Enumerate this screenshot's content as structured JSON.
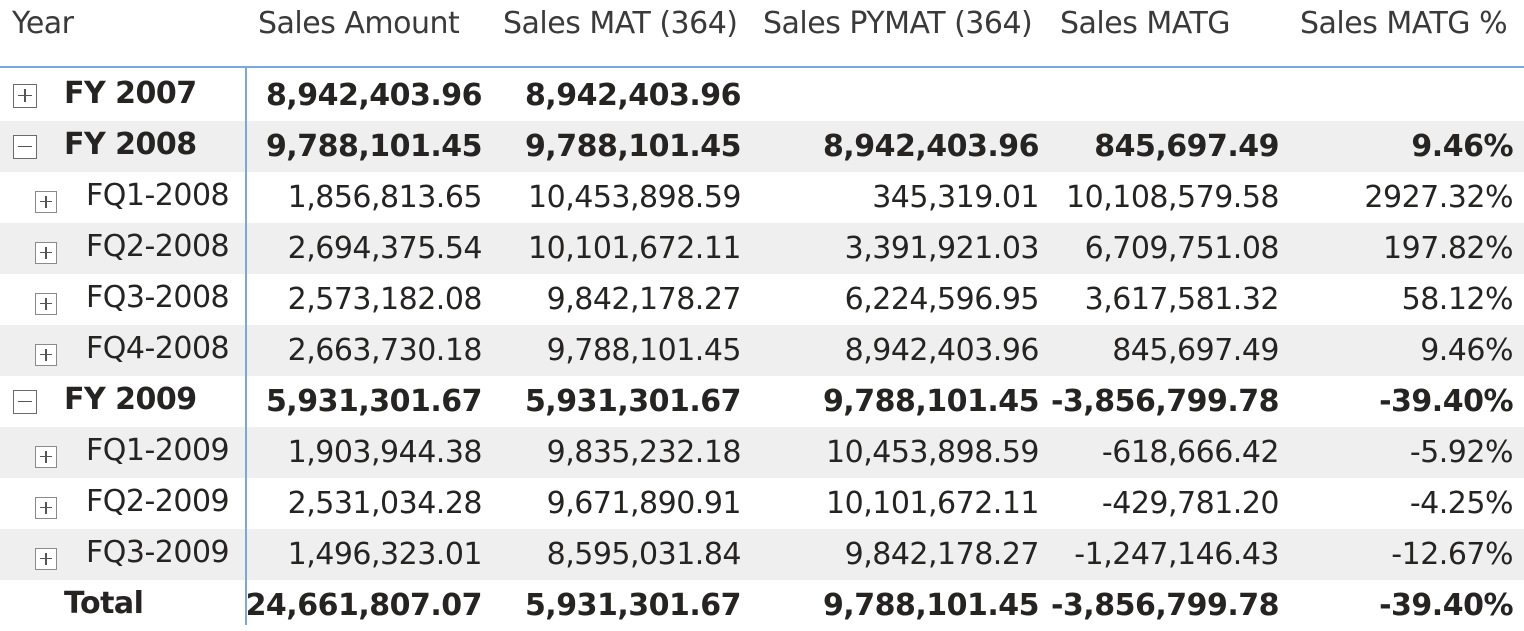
{
  "columns": [
    "Year",
    "Sales Amount",
    "Sales MAT (364)",
    "Sales PYMAT (364)",
    "Sales MATG",
    "Sales MATG %"
  ],
  "rows": [
    {
      "label": "FY 2007",
      "level": 0,
      "expand": "plus",
      "bold": true,
      "values": [
        "8,942,403.96",
        "8,942,403.96",
        "",
        "",
        ""
      ]
    },
    {
      "label": "FY 2008",
      "level": 0,
      "expand": "minus",
      "bold": true,
      "values": [
        "9,788,101.45",
        "9,788,101.45",
        "8,942,403.96",
        "845,697.49",
        "9.46%"
      ]
    },
    {
      "label": "FQ1-2008",
      "level": 1,
      "expand": "plus",
      "bold": false,
      "values": [
        "1,856,813.65",
        "10,453,898.59",
        "345,319.01",
        "10,108,579.58",
        "2927.32%"
      ]
    },
    {
      "label": "FQ2-2008",
      "level": 1,
      "expand": "plus",
      "bold": false,
      "values": [
        "2,694,375.54",
        "10,101,672.11",
        "3,391,921.03",
        "6,709,751.08",
        "197.82%"
      ]
    },
    {
      "label": "FQ3-2008",
      "level": 1,
      "expand": "plus",
      "bold": false,
      "values": [
        "2,573,182.08",
        "9,842,178.27",
        "6,224,596.95",
        "3,617,581.32",
        "58.12%"
      ]
    },
    {
      "label": "FQ4-2008",
      "level": 1,
      "expand": "plus",
      "bold": false,
      "values": [
        "2,663,730.18",
        "9,788,101.45",
        "8,942,403.96",
        "845,697.49",
        "9.46%"
      ]
    },
    {
      "label": "FY 2009",
      "level": 0,
      "expand": "minus",
      "bold": true,
      "values": [
        "5,931,301.67",
        "5,931,301.67",
        "9,788,101.45",
        "-3,856,799.78",
        "-39.40%"
      ]
    },
    {
      "label": "FQ1-2009",
      "level": 1,
      "expand": "plus",
      "bold": false,
      "values": [
        "1,903,944.38",
        "9,835,232.18",
        "10,453,898.59",
        "-618,666.42",
        "-5.92%"
      ]
    },
    {
      "label": "FQ2-2009",
      "level": 1,
      "expand": "plus",
      "bold": false,
      "values": [
        "2,531,034.28",
        "9,671,890.91",
        "10,101,672.11",
        "-429,781.20",
        "-4.25%"
      ]
    },
    {
      "label": "FQ3-2009",
      "level": 1,
      "expand": "plus",
      "bold": false,
      "values": [
        "1,496,323.01",
        "8,595,031.84",
        "9,842,178.27",
        "-1,247,146.43",
        "-12.67%"
      ]
    }
  ],
  "total": {
    "label": "Total",
    "values": [
      "24,661,807.07",
      "5,931,301.67",
      "9,788,101.45",
      "-3,856,799.78",
      "-39.40%"
    ]
  },
  "colors": {
    "header_rule": "#7aa7e0",
    "alt_row": "#efefef",
    "text": "#252423"
  }
}
